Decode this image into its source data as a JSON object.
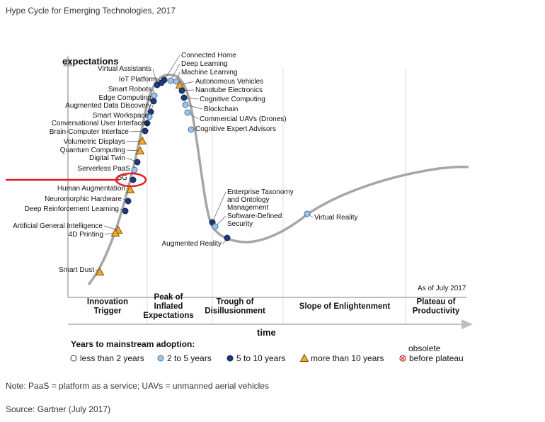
{
  "title": "Hype Cycle for Emerging Technologies, 2017",
  "note": "Note: PaaS = platform as a service; UAVs = unmanned aerial vehicles",
  "source": "Source: Gartner (July 2017)",
  "chart_data": {
    "type": "hype-cycle",
    "y_axis_label": "expectations",
    "x_axis_label": "time",
    "as_of": "As of July 2017",
    "phases": [
      {
        "lines": [
          "Innovation",
          "Trigger"
        ]
      },
      {
        "lines": [
          "Peak of",
          "Inflated",
          "Expectations"
        ]
      },
      {
        "lines": [
          "Trough of",
          "Disillusionment"
        ]
      },
      {
        "lines": [
          "Slope of Enlightenment"
        ]
      },
      {
        "lines": [
          "Plateau of",
          "Productivity"
        ]
      }
    ],
    "legend": {
      "title": "Years to mainstream adoption:",
      "items": [
        {
          "key": "lt2",
          "label": "less than 2 years",
          "marker": "open-circle",
          "color": "#ffffff"
        },
        {
          "key": "2to5",
          "label": "2 to 5 years",
          "marker": "circle",
          "color": "#9dc3e6"
        },
        {
          "key": "5to10",
          "label": "5 to 10 years",
          "marker": "circle",
          "color": "#1f3a7a"
        },
        {
          "key": "gt10",
          "label": "more than 10 years",
          "marker": "triangle",
          "color": "#f0a830"
        }
      ],
      "obsolete": [
        "obsolete",
        "before plateau"
      ]
    },
    "highlight": "5G",
    "technologies": [
      {
        "name": "Connected Home",
        "category": "5to10"
      },
      {
        "name": "Deep Learning",
        "category": "2to5"
      },
      {
        "name": "Machine Learning",
        "category": "2to5"
      },
      {
        "name": "Virtual Assistants",
        "category": "5to10"
      },
      {
        "name": "IoT Platform",
        "category": "5to10"
      },
      {
        "name": "Autonomous Vehicles",
        "category": "gt10"
      },
      {
        "name": "Nanotube Electronics",
        "category": "5to10"
      },
      {
        "name": "Smart Robots",
        "category": "2to5"
      },
      {
        "name": "Edge Computing",
        "category": "5to10"
      },
      {
        "name": "Augmented Data Discovery",
        "category": "5to10"
      },
      {
        "name": "Cognitive Computing",
        "category": "5to10"
      },
      {
        "name": "Blockchain",
        "category": "2to5"
      },
      {
        "name": "Smart Workspace",
        "category": "2to5"
      },
      {
        "name": "Conversational User Interfaces",
        "category": "5to10"
      },
      {
        "name": "Brain-Computer Interface",
        "category": "5to10"
      },
      {
        "name": "Commercial UAVs (Drones)",
        "category": "2to5"
      },
      {
        "name": "Cognitive Expert Advisors",
        "category": "2to5"
      },
      {
        "name": "Volumetric Displays",
        "category": "gt10"
      },
      {
        "name": "Quantum Computing",
        "category": "gt10"
      },
      {
        "name": "Digital Twin",
        "category": "5to10"
      },
      {
        "name": "Serverless PaaS",
        "category": "2to5"
      },
      {
        "name": "5G",
        "category": "5to10"
      },
      {
        "name": "Human Augmentation",
        "category": "gt10"
      },
      {
        "name": "Neuromorphic Hardware",
        "category": "5to10"
      },
      {
        "name": "Deep Reinforcement Learning",
        "category": "5to10"
      },
      {
        "name": "Artificial General Intelligence",
        "category": "gt10"
      },
      {
        "name": "4D Printing",
        "category": "gt10"
      },
      {
        "name": "Smart Dust",
        "category": "gt10"
      },
      {
        "name": "Enterprise Taxonomy and Ontology Management",
        "lines": [
          "Enterprise Taxonomy",
          "and Ontology",
          "Management"
        ],
        "category": "5to10"
      },
      {
        "name": "Software-Defined Security",
        "lines": [
          "Software-Defined",
          "Security"
        ],
        "category": "2to5"
      },
      {
        "name": "Augmented Reality",
        "category": "5to10"
      },
      {
        "name": "Virtual Reality",
        "category": "2to5"
      }
    ]
  }
}
